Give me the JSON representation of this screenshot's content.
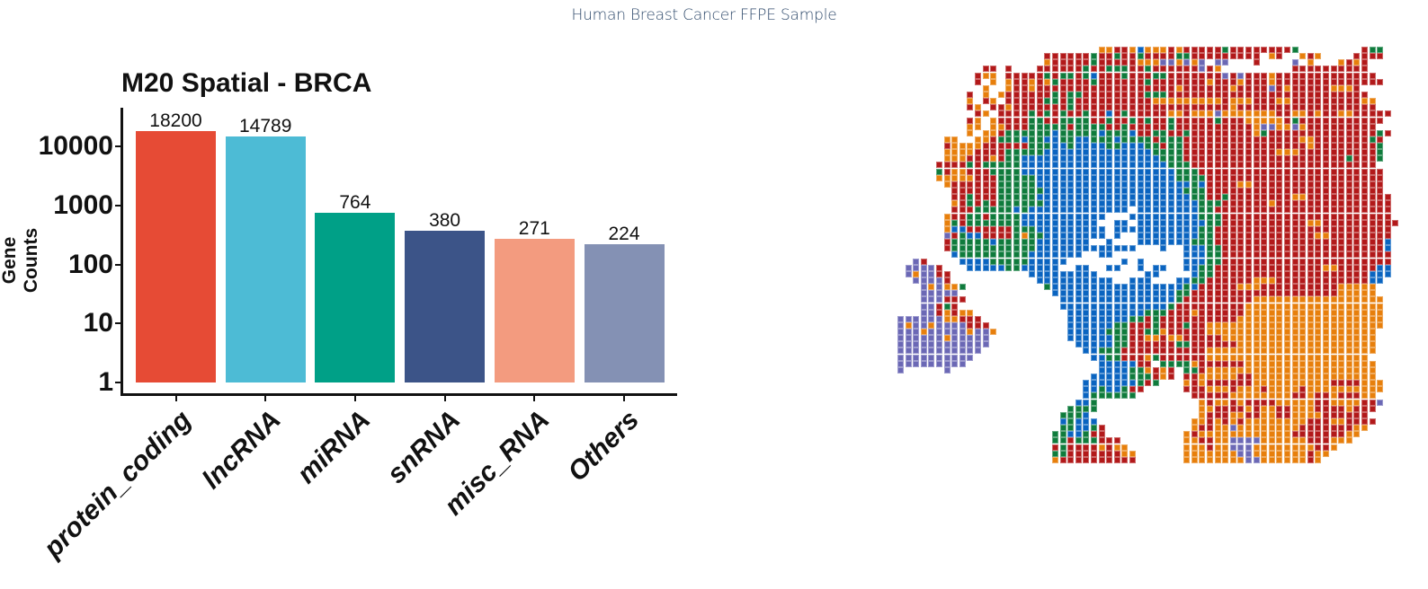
{
  "header": {
    "title": "Human Breast Cancer FFPE Sample"
  },
  "chart_data": {
    "type": "bar",
    "title": "M20 Spatial - BRCA",
    "xlabel": "",
    "ylabel": "Gene Counts",
    "yscale": "log10",
    "ylim": [
      1,
      30000
    ],
    "yticks": [
      "1",
      "10",
      "100",
      "1000",
      "10000"
    ],
    "categories": [
      "protein_coding",
      "lncRNA",
      "miRNA",
      "snRNA",
      "misc_RNA",
      "Others"
    ],
    "values": [
      18200,
      14789,
      764,
      380,
      271,
      224
    ],
    "value_labels": [
      "18200",
      "14789",
      "764",
      "380",
      "271",
      "224"
    ],
    "colors": [
      "#E64B35",
      "#4DBBD5",
      "#00A087",
      "#3C5488",
      "#F39B7F",
      "#8491B4"
    ],
    "grid": false,
    "legend": "none"
  },
  "spatial_map": {
    "description": "Spatial clustering spot map of tissue section",
    "palette": {
      "R": "#B2191A",
      "O": "#E77F0C",
      "G": "#0F7B3C",
      "B": "#0A64C0",
      "P": "#6B68B5"
    },
    "rows": [
      "..........................OORROBOOORORRRRRGRRRRRRRRG........RGG",
      "...................RRRRRRGRRGRRGRRRRGGRRRRRRRRR.OR..ORO....RRRR",
      "...................ORRRRRGRRRRROOOPPOPOP.PP...R....P.O...OROR..",
      "...........RR.R...RRRRRRGRRGGGRRGRRRRRRPRO.........RRRRRRRRRR..",
      "..........ROO.RRRRRGRGGRGBRRRGRRRGGRRRRRRRPRPRRRORRRRRRRRRRRRR.",
      "..........R.O.ORROROGRRRRGRRRRRRGRRRRRRRORRRORRRORRRRRRRRRRRRRR.",
      "...........O..ORRORRRRRRRRRRRRRRRRRRORRRRRRORRRRPRORRRRROOOR.",
      ".........R.O.ORRRRRRGRGGRRRRRRRRGGGRRRRRRRRRRRRRRRRRRRRRRRRRR..",
      ".........O.RO.RRRRRGGRGRRRRRRRRRROOOOOOOOOROOORRROORRRRRRRRROO..",
      ".........RO.RRORRRRRRRGRRRRRRRRRRRRRRRRRRRRORRRRRRRRRRRRRRRRRR.",
      "..........RO.RRRRGRGRGRRGRRBRGRRRRROOROOOPOOOOOOORROORORROORRRRR",
      ".........RO.ORRRRGGRRGGGGRRGRRGRGRRGRRRRRGRRROOOOORGRRRRRRRRRRR",
      ".........OO.OORRRGGGGGRGGGGRRGRRRRRGRRRRRRRRRROPPOOPORRRRRRRRR",
      ".........O.OORGGGGGGBGGGGGBGGGBRRGGRRGRRRRRRRROGRRRRRRRRRRRRRRGR",
      "......OO..OORGGGBGGBBGGBBGGGBGGGGRGGGRRRRRRRRRRRRRRROORRRRRRRGR",
      "......ROOOORRRRRRGGGBBGBBBBGGBBBGGRGGRRRRRRRRRRRRRRRRORRRRRRRRG",
      "......OOOORRRRGGGGGBBBBBBBBBBBBBBGGGGRRRRRRRRRRRROOORRRRRRRRRRG",
      "......OOORRRORGGBBBBBBBBBBBBBBBBBBGGGRRRRRRRRRRRRRRRRRRRRRGRRRG",
      ".....RRRRGRGGGGGBBBBBBBBBBBBBBBBBBBGGGRRRRRRRRRRRRRRRRRRRRRRRR",
      ".....GROORRRGGGGBBBBBBBBBBBBBBBBBBBBGGGRRRRRRRRRRRRRRRRRRRRRRRR",
      ".....OOOOORRRGGGGGBBBBBBBBBBBBBBBBBBGGGGRRRRRRRRRRRRRRRRRRRRRRR",
      "......ORRRRRRGGGGGBBBBBBBBBBBBBBBBBBBBGBRRRROORRRRRRRRRRRRRRRRR",
      ".......RRRRRRGGGGGGBBBBBBBBBBBBBBBBBBGGGRRRRRRRRRRRRRRRRRRRRRRR",
      ".......RRGRRRGGGGGBBBBBBBBBBBBBBBBBBBBGGRRGRRRRRRRROORRRRRRRRRRR",
      ".......ORGRGRGGGGGGBBBBBBBBBBBBBBBBBBBBGGGRRRRRRORRRRRRRRRRRRRRR",
      ".......RRRGGGGGBGBBBBBBBBBBBBB.BBBBBBBBGGRRRRRRRRRRRRRRRRRRRRRRR",
      "......ORRGGRGGGGBBBBBBBBBBB...BBBBBBBBBGGGRRRRRRRRRRRRRRRRRRRRRR",
      "......OGRGGGGGGGBBBBBBBBBB..BB.BBBBBBBBBGGRRRRRRRRRRROORRRRRRRRRR",
      "......OBBRRRRRRGGGBBBBBBBBB.BBBBBBBBBBBGGRRRRRRRRRRRRRRRRRRRRRRR",
      "......PRGBBRRRRGOGGBBBBBBBB.B..BBBBBBBBGGRRRRRRRRRRRRROORRRRRRRR",
      "......RGGGGGBGGGGGBBBBBBB..B...BBBBBBBGGGRRRRRRRRRRRRRRRRRRRRRRB",
      "......RGGGGGGGGGGGBBBBBBBBBBBBB...B..BBBGGRRRRRRRRRRRRRRRRRRRRRB",
      ".......BGGGGGGGGGBBBBBBB..BB.........BBBGGRRRRRRRRRRRRRRRRRRRRRR",
      "..PR....BBBBGGGGGBBBBB.......B.B.....BBBGGRRRRRRRRRRRRRRRRRRRRRR",
      ".PPPPR...BBBBBGGBBBBB..BB..BB..B.BB..BBGGRRRRRRRRRRRRRROORRRRRBB",
      ".POPPRR..........BBBBBBBBB......BB....BGGRRRRRRRRRRRRRRRRRRRRBBB",
      "..PPPPR...........BBBBBBBBBB..BBB...BBGGRRRRRROOORRRRRRRRRRRRBB",
      "...POPOOG..........GBBBBBBBBBBBBBBBBBGBRRRRROOORRRRRRRRRROOOOO",
      "...PPPPP............BBBBBBBBBBBBBBBBGGRRRRRRRRRRRRRRRRRRROOOOO",
      "...PPPRRR............BBBBBBBBBBBBBBBGRRRRRRRRROOOOOOOOOOOOOOOOO",
      "...PPRGR.............BBBBBBBBBBBBBBGRRRRRRRRROOOOOOOOOOOOOOOOOO",
      "...PPROROO............BBBBBBBBBBGGGRRRORRRRRROOOOOOOOOOOOOOOOOO",
      "PPPPPPOORRR...........BBBBBBBBGGRGRRRRRRRRRROOOOOOOOOOOOOOOOOOO",
      "POPPOPPPPRRR..........BBBBBBGGRRRGRRRGRROOOOOOOOOOOOOOOOOOOOOOO",
      "PPPOPPPPPOPPO.........BBBBBGGGRRGGORRRRROOOOOOOOOOOOOOOOOOOOOO",
      "PPPPPPOPPPPP..........BBBBBBGGRROOROORRRRROOOOOOOOOOOOOOOOOOOO",
      "PPPPPPPPPPPP...........BBBBBGGRRRRRRGGRRRRRROOOOOOOOOOOOOOOOOO",
      "PPPPPPPPPPP.............BBGGGRRRRRRRRRRROOOOOOOOOOOOOOOOOOOOOO",
      "PPPPPPPPPP...............BBGGRRROGRRRRRROOOOOOOOOOOOOOOOOOOOO",
      "PPPPPPPPP.................BBBBBRR.GGGGORRRRRROOOOOOOOOOOOOOOOO",
      "P.....P...................BBBBGGOROR.GGROOOOOOOOOOOOOOOOOOOOOO",
      ".........................BBBBBGGGROR.RROOOOORROOOOOOOOOOOOOOOO",
      "........................BBBBBBBGRG...ORORRRRRROOOOOOOOOORRRROOO",
      "........................BBGBBGRR.....RRROOOROOOROOOOROOOOOOOOOO",
      "........................BGGGGGG.......RRRRROOOOOOOORRORRORRROO",
      ".......................BBG.............OROORORRRROOOOORROOOORRP",
      "......................GGGG.............OORRRROROORROOORRRRORRR",
      ".....................GGGB..............ORRROORROORROOOORRRRRR",
      ".....................BGBBB............OOROROROOOOOOOORRROORRRR",
      ".....................GGBBGR...........ORROOPOOOOOOOORRRRRRROO",
      "....................GGBBGRR..........OROOOOOOOOOOOORRRRRRROO",
      "....................GGRGGGRRR........OORROOPPPPOOOOOORRROOO",
      "....................RGRRRROROO.......OOOROOPPPOOOOOOOORRO",
      "....................GGRRRRRRROO......OOOOOOOPPOOOOOOOROO",
      "....................ORRRRRRRRRR......OOOOOOOOPPOOOOOORO"
    ]
  }
}
